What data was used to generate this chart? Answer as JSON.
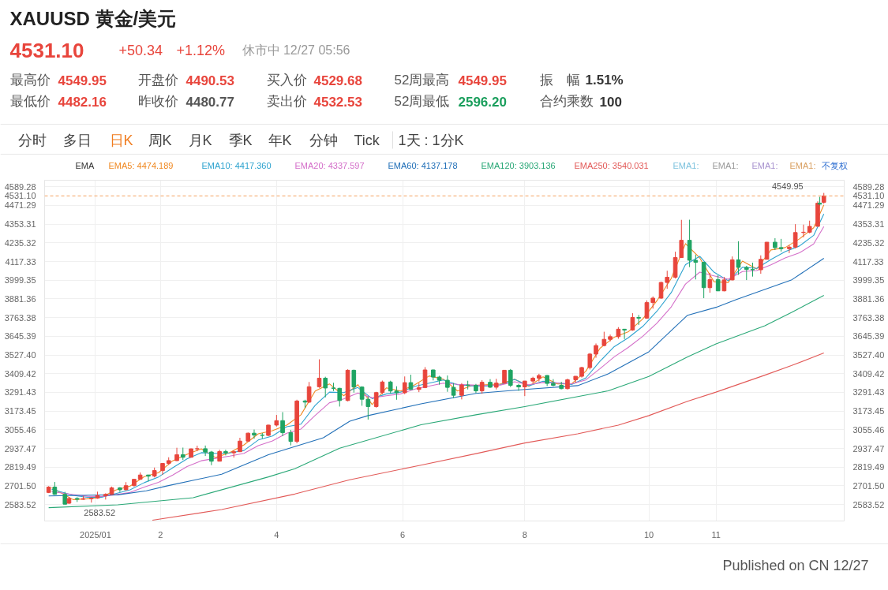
{
  "chart_data": [
    {
      "type": "other",
      "title": "XAUUSD 黄金/美元",
      "annotations": [
        "4531.10",
        "+50.34",
        "+1.12%",
        "休市中 12/27 05:56",
        "最高价",
        "4549.95",
        "开盘价",
        "4490.53",
        "买入价",
        "4529.68",
        "52周最高",
        "4549.95",
        "振　幅",
        "1.51%",
        "最低价",
        "4482.16",
        "昨收价",
        "4480.77",
        "卖出价",
        "4532.53",
        "52周最低",
        "2596.20",
        "合约乘数",
        "100",
        "分时",
        "多日",
        "日K",
        "周K",
        "月K",
        "季K",
        "年K",
        "分钟",
        "Tick",
        "1天 : 1分K"
      ]
    },
    {
      "type": "candlestick",
      "x": [
        "2024-12-10",
        "2024-12-13",
        "2024-12-18",
        "2024-12-20",
        "2024-12-24",
        "2024-12-27",
        "2024-12-31",
        "2025-01-03",
        "2025-01-07",
        "2025-01-10",
        "2025-01-14",
        "2025-01-17",
        "2025-01-21",
        "2025-01-24",
        "2025-01-28",
        "2025-01-31",
        "2025-02-04",
        "2025-02-07",
        "2025-02-11",
        "2025-02-14",
        "2025-02-18",
        "2025-02-21",
        "2025-02-25",
        "2025-02-28",
        "2025-03-04",
        "2025-03-07",
        "2025-03-11",
        "2025-03-14",
        "2025-03-18",
        "2025-03-21",
        "2025-03-25",
        "2025-03-28",
        "2025-04-01",
        "2025-04-04",
        "2025-04-08",
        "2025-04-11",
        "2025-04-15",
        "2025-04-17",
        "2025-04-22",
        "2025-04-25",
        "2025-04-29",
        "2025-05-02",
        "2025-05-06",
        "2025-05-09",
        "2025-05-13",
        "2025-05-16",
        "2025-05-20",
        "2025-05-23",
        "2025-05-27",
        "2025-05-30",
        "2025-06-03",
        "2025-06-06",
        "2025-06-10",
        "2025-06-13",
        "2025-06-17",
        "2025-06-20",
        "2025-06-24",
        "2025-06-27",
        "2025-07-01",
        "2025-07-04",
        "2025-07-08",
        "2025-07-11",
        "2025-07-15",
        "2025-07-18",
        "2025-07-22",
        "2025-07-25",
        "2025-07-29",
        "2025-08-01",
        "2025-08-05",
        "2025-08-08",
        "2025-08-12",
        "2025-08-15",
        "2025-08-19",
        "2025-08-22",
        "2025-08-26",
        "2025-08-29",
        "2025-09-02",
        "2025-09-05",
        "2025-09-09",
        "2025-09-12",
        "2025-09-16",
        "2025-09-19",
        "2025-09-23",
        "2025-09-26",
        "2025-09-30",
        "2025-10-03",
        "2025-10-07",
        "2025-10-10",
        "2025-10-14",
        "2025-10-17",
        "2025-10-21",
        "2025-10-24",
        "2025-10-28",
        "2025-10-31",
        "2025-11-04",
        "2025-11-07",
        "2025-11-11",
        "2025-11-14",
        "2025-11-18",
        "2025-11-21",
        "2025-11-25",
        "2025-11-28",
        "2025-12-02",
        "2025-12-05",
        "2025-12-09",
        "2025-12-12",
        "2025-12-16",
        "2025-12-19",
        "2025-12-23",
        "2025-12-24",
        "2025-12-26"
      ],
      "ohlc": [
        [
          2660,
          2700,
          2656,
          2694
        ],
        [
          2694,
          2726,
          2645,
          2648
        ],
        [
          2648,
          2664,
          2583.52,
          2586
        ],
        [
          2592,
          2632,
          2588,
          2622
        ],
        [
          2622,
          2630,
          2600,
          2617
        ],
        [
          2617,
          2638,
          2614,
          2621
        ],
        [
          2621,
          2630,
          2596,
          2624
        ],
        [
          2624,
          2665,
          2620,
          2640
        ],
        [
          2640,
          2655,
          2615,
          2648
        ],
        [
          2648,
          2697,
          2645,
          2689
        ],
        [
          2689,
          2694,
          2663,
          2677
        ],
        [
          2677,
          2725,
          2674,
          2703
        ],
        [
          2703,
          2746,
          2697,
          2743
        ],
        [
          2743,
          2786,
          2741,
          2770
        ],
        [
          2770,
          2772,
          2730,
          2763
        ],
        [
          2763,
          2817,
          2755,
          2798
        ],
        [
          2798,
          2845,
          2772,
          2843
        ],
        [
          2843,
          2882,
          2834,
          2861
        ],
        [
          2861,
          2942,
          2858,
          2898
        ],
        [
          2898,
          2943,
          2865,
          2882
        ],
        [
          2882,
          2937,
          2880,
          2935
        ],
        [
          2935,
          2955,
          2920,
          2936
        ],
        [
          2936,
          2956,
          2890,
          2915
        ],
        [
          2915,
          2922,
          2832,
          2857
        ],
        [
          2857,
          2930,
          2856,
          2918
        ],
        [
          2918,
          2930,
          2894,
          2910
        ],
        [
          2910,
          2925,
          2880,
          2917
        ],
        [
          2917,
          3005,
          2915,
          2984
        ],
        [
          2984,
          3038,
          2982,
          3034
        ],
        [
          3034,
          3057,
          2999,
          3022
        ],
        [
          3022,
          3035,
          3000,
          3020
        ],
        [
          3020,
          3087,
          3015,
          3085
        ],
        [
          3085,
          3149,
          3076,
          3113
        ],
        [
          3113,
          3167,
          3015,
          3037
        ],
        [
          3037,
          3055,
          2957,
          2982
        ],
        [
          2982,
          3245,
          2970,
          3237
        ],
        [
          3237,
          3245,
          3193,
          3230
        ],
        [
          3230,
          3357,
          3225,
          3327
        ],
        [
          3327,
          3500,
          3320,
          3381
        ],
        [
          3381,
          3390,
          3260,
          3319
        ],
        [
          3319,
          3352,
          3300,
          3317
        ],
        [
          3317,
          3320,
          3202,
          3240
        ],
        [
          3240,
          3437,
          3235,
          3431
        ],
        [
          3431,
          3435,
          3290,
          3325
        ],
        [
          3325,
          3330,
          3207,
          3248
        ],
        [
          3248,
          3265,
          3120,
          3202
        ],
        [
          3202,
          3295,
          3195,
          3290
        ],
        [
          3290,
          3366,
          3280,
          3357
        ],
        [
          3357,
          3365,
          3285,
          3300
        ],
        [
          3300,
          3330,
          3245,
          3289
        ],
        [
          3289,
          3392,
          3280,
          3353
        ],
        [
          3353,
          3403,
          3306,
          3310
        ],
        [
          3310,
          3350,
          3293,
          3322
        ],
        [
          3322,
          3451,
          3318,
          3433
        ],
        [
          3433,
          3435,
          3367,
          3388
        ],
        [
          3388,
          3396,
          3340,
          3368
        ],
        [
          3368,
          3398,
          3295,
          3323
        ],
        [
          3323,
          3350,
          3255,
          3273
        ],
        [
          3273,
          3350,
          3247,
          3338
        ],
        [
          3338,
          3365,
          3310,
          3336
        ],
        [
          3336,
          3345,
          3287,
          3301
        ],
        [
          3301,
          3368,
          3283,
          3355
        ],
        [
          3355,
          3375,
          3320,
          3324
        ],
        [
          3324,
          3377,
          3310,
          3350
        ],
        [
          3350,
          3433,
          3345,
          3431
        ],
        [
          3431,
          3439,
          3325,
          3336
        ],
        [
          3336,
          3345,
          3301,
          3326
        ],
        [
          3326,
          3363,
          3268,
          3363
        ],
        [
          3363,
          3390,
          3350,
          3381
        ],
        [
          3381,
          3409,
          3360,
          3398
        ],
        [
          3398,
          3400,
          3331,
          3348
        ],
        [
          3348,
          3375,
          3330,
          3336
        ],
        [
          3336,
          3358,
          3311,
          3315
        ],
        [
          3315,
          3378,
          3310,
          3371
        ],
        [
          3371,
          3394,
          3351,
          3393
        ],
        [
          3393,
          3453,
          3385,
          3448
        ],
        [
          3448,
          3540,
          3436,
          3533
        ],
        [
          3533,
          3600,
          3510,
          3587
        ],
        [
          3587,
          3674,
          3582,
          3626
        ],
        [
          3626,
          3656,
          3613,
          3643
        ],
        [
          3643,
          3703,
          3630,
          3690
        ],
        [
          3690,
          3692,
          3628,
          3685
        ],
        [
          3685,
          3791,
          3680,
          3764
        ],
        [
          3764,
          3780,
          3717,
          3760
        ],
        [
          3760,
          3872,
          3756,
          3858
        ],
        [
          3858,
          3897,
          3820,
          3886
        ],
        [
          3886,
          3990,
          3882,
          3985
        ],
        [
          3985,
          4059,
          3945,
          4018
        ],
        [
          4018,
          4179,
          4010,
          4142
        ],
        [
          4142,
          4380,
          4140,
          4251
        ],
        [
          4251,
          4381,
          4082,
          4125
        ],
        [
          4125,
          4161,
          4004,
          4112
        ],
        [
          4112,
          4116,
          3886,
          3952
        ],
        [
          3952,
          4046,
          3920,
          4003
        ],
        [
          4003,
          4030,
          3930,
          3932
        ],
        [
          3932,
          4020,
          3929,
          4001
        ],
        [
          4001,
          4149,
          3998,
          4128
        ],
        [
          4128,
          4245,
          4033,
          4080
        ],
        [
          4080,
          4090,
          4000,
          4067
        ],
        [
          4067,
          4110,
          4022,
          4065
        ],
        [
          4065,
          4156,
          4040,
          4131
        ],
        [
          4131,
          4240,
          4130,
          4239
        ],
        [
          4239,
          4264,
          4190,
          4205
        ],
        [
          4205,
          4260,
          4180,
          4198
        ],
        [
          4198,
          4220,
          4170,
          4208
        ],
        [
          4208,
          4353,
          4200,
          4300
        ],
        [
          4300,
          4350,
          4270,
          4302
        ],
        [
          4302,
          4375,
          4295,
          4339
        ],
        [
          4339,
          4497,
          4339,
          4485
        ],
        [
          4485,
          4525,
          4468,
          4479
        ],
        [
          4490.53,
          4549.95,
          4482.16,
          4531.1
        ]
      ],
      "colors": [
        "#e8453c",
        "#1fa463",
        "#1fa463",
        "#e8453c",
        "#1fa463",
        "#e8453c",
        "#e8453c",
        "#e8453c",
        "#e8453c",
        "#e8453c",
        "#1fa463",
        "#e8453c",
        "#e8453c",
        "#e8453c",
        "#1fa463",
        "#e8453c",
        "#e8453c",
        "#e8453c",
        "#e8453c",
        "#1fa463",
        "#e8453c",
        "#e8453c",
        "#1fa463",
        "#1fa463",
        "#e8453c",
        "#1fa463",
        "#e8453c",
        "#e8453c",
        "#e8453c",
        "#1fa463",
        "#1fa463",
        "#e8453c",
        "#e8453c",
        "#1fa463",
        "#1fa463",
        "#e8453c",
        "#1fa463",
        "#e8453c",
        "#e8453c",
        "#1fa463",
        "#1fa463",
        "#1fa463",
        "#e8453c",
        "#1fa463",
        "#1fa463",
        "#1fa463",
        "#e8453c",
        "#e8453c",
        "#1fa463",
        "#1fa463",
        "#e8453c",
        "#1fa463",
        "#e8453c",
        "#e8453c",
        "#1fa463",
        "#1fa463",
        "#1fa463",
        "#1fa463",
        "#e8453c",
        "#1fa463",
        "#1fa463",
        "#e8453c",
        "#1fa463",
        "#e8453c",
        "#e8453c",
        "#1fa463",
        "#1fa463",
        "#e8453c",
        "#e8453c",
        "#e8453c",
        "#1fa463",
        "#1fa463",
        "#1fa463",
        "#e8453c",
        "#e8453c",
        "#e8453c",
        "#e8453c",
        "#e8453c",
        "#e8453c",
        "#e8453c",
        "#e8453c",
        "#1fa463",
        "#e8453c",
        "#1fa463",
        "#e8453c",
        "#e8453c",
        "#e8453c",
        "#e8453c",
        "#e8453c",
        "#e8453c",
        "#1fa463",
        "#1fa463",
        "#1fa463",
        "#e8453c",
        "#1fa463",
        "#e8453c",
        "#e8453c",
        "#1fa463",
        "#1fa463",
        "#1fa463",
        "#e8453c",
        "#e8453c",
        "#1fa463",
        "#1fa463",
        "#e8453c",
        "#e8453c",
        "#e8453c",
        "#e8453c",
        "#e8453c",
        "#1fa463",
        "#e8453c"
      ],
      "series": [
        {
          "type": "line",
          "name": "EMA5: 4474.189",
          "color": "#f08a24",
          "x": [
            "2024-12-11T12:00",
            "2024-12-22",
            "2024-12-29",
            "2025-01-05",
            "2025-01-12",
            "2025-01-19",
            "2025-01-26",
            "2025-02-02",
            "2025-02-09",
            "2025-02-16",
            "2025-02-23",
            "2025-03-02",
            "2025-03-09",
            "2025-03-16",
            "2025-03-23",
            "2025-03-30",
            "2025-04-06",
            "2025-04-13",
            "2025-04-20",
            "2025-04-27",
            "2025-05-04",
            "2025-05-11",
            "2025-05-18",
            "2025-05-25",
            "2025-06-01",
            "2025-06-08",
            "2025-06-15",
            "2025-06-22",
            "2025-06-29",
            "2025-07-06",
            "2025-07-13",
            "2025-07-20",
            "2025-07-27",
            "2025-08-03",
            "2025-08-10",
            "2025-08-17",
            "2025-08-24",
            "2025-08-31",
            "2025-09-07",
            "2025-09-14",
            "2025-09-21",
            "2025-09-28",
            "2025-10-05",
            "2025-10-12",
            "2025-10-19",
            "2025-10-26",
            "2025-11-02",
            "2025-11-09",
            "2025-11-16",
            "2025-11-23",
            "2025-11-30",
            "2025-12-07",
            "2025-12-14",
            "2025-12-21",
            "2025-12-26"
          ],
          "values": [
            2690,
            2615,
            2620,
            2630,
            2675,
            2700,
            2760,
            2785,
            2860,
            2900,
            2935,
            2880,
            2912,
            2960,
            3030,
            3050,
            3085,
            3150,
            3300,
            3345,
            3270,
            3340,
            3215,
            3320,
            3300,
            3340,
            3395,
            3375,
            3300,
            3335,
            3340,
            3345,
            3375,
            3330,
            3390,
            3345,
            3345,
            3425,
            3570,
            3640,
            3675,
            3755,
            3870,
            4010,
            4230,
            4140,
            3990,
            3985,
            4120,
            4070,
            4190,
            4205,
            4260,
            4330,
            4474.189
          ]
        },
        {
          "type": "line",
          "name": "EMA10: 4417.360",
          "color": "#2ea3cf",
          "x": [
            "2024-12-11T12:00",
            "2024-12-22",
            "2024-12-29",
            "2025-01-05",
            "2025-01-12",
            "2025-01-19",
            "2025-01-26",
            "2025-02-02",
            "2025-02-09",
            "2025-02-16",
            "2025-02-23",
            "2025-03-02",
            "2025-03-09",
            "2025-03-16",
            "2025-03-23",
            "2025-03-30",
            "2025-04-06",
            "2025-04-13",
            "2025-04-20",
            "2025-04-27",
            "2025-05-04",
            "2025-05-11",
            "2025-05-18",
            "2025-05-25",
            "2025-06-01",
            "2025-06-08",
            "2025-06-15",
            "2025-06-22",
            "2025-06-29",
            "2025-07-06",
            "2025-07-13",
            "2025-07-20",
            "2025-07-27",
            "2025-08-03",
            "2025-08-10",
            "2025-08-17",
            "2025-08-24",
            "2025-08-31",
            "2025-09-07",
            "2025-09-14",
            "2025-09-21",
            "2025-09-28",
            "2025-10-05",
            "2025-10-12",
            "2025-10-19",
            "2025-10-26",
            "2025-11-02",
            "2025-11-09",
            "2025-11-16",
            "2025-11-23",
            "2025-11-30",
            "2025-12-07",
            "2025-12-14",
            "2025-12-21",
            "2025-12-26"
          ],
          "values": [
            2680,
            2642,
            2629,
            2630,
            2653,
            2677,
            2722,
            2758,
            2816,
            2872,
            2911,
            2907,
            2909,
            2925,
            2991,
            3016,
            3075,
            3091,
            3210,
            3293,
            3290,
            3322,
            3252,
            3282,
            3293,
            3330,
            3350,
            3370,
            3340,
            3333,
            3331,
            3340,
            3373,
            3333,
            3362,
            3351,
            3341,
            3382,
            3488,
            3580,
            3637,
            3708,
            3804,
            3921,
            4097,
            4150,
            4050,
            3996,
            4081,
            4074,
            4130,
            4180,
            4215,
            4282,
            4417.36
          ]
        },
        {
          "type": "line",
          "name": "EMA20: 4337.597",
          "color": "#d46fc9",
          "x": [
            "2024-12-11T12:00",
            "2024-12-22",
            "2024-12-29",
            "2025-01-05",
            "2025-01-12",
            "2025-01-19",
            "2025-01-26",
            "2025-02-02",
            "2025-02-09",
            "2025-02-16",
            "2025-02-23",
            "2025-03-02",
            "2025-03-09",
            "2025-03-16",
            "2025-03-23",
            "2025-03-30",
            "2025-04-06",
            "2025-04-13",
            "2025-04-20",
            "2025-04-27",
            "2025-05-04",
            "2025-05-11",
            "2025-05-18",
            "2025-05-25",
            "2025-06-01",
            "2025-06-08",
            "2025-06-15",
            "2025-06-22",
            "2025-06-29",
            "2025-07-06",
            "2025-07-13",
            "2025-07-20",
            "2025-07-27",
            "2025-08-03",
            "2025-08-10",
            "2025-08-17",
            "2025-08-24",
            "2025-08-31",
            "2025-09-07",
            "2025-09-14",
            "2025-09-21",
            "2025-09-28",
            "2025-10-05",
            "2025-10-12",
            "2025-10-19",
            "2025-10-26",
            "2025-11-02",
            "2025-11-09",
            "2025-11-16",
            "2025-11-23",
            "2025-11-30",
            "2025-12-07",
            "2025-12-14",
            "2025-12-21",
            "2025-12-26"
          ],
          "values": [
            2665,
            2647,
            2636,
            2634,
            2646,
            2660,
            2694,
            2724,
            2770,
            2823,
            2860,
            2875,
            2889,
            2907,
            2955,
            2985,
            3034,
            3060,
            3146,
            3226,
            3250,
            3288,
            3257,
            3270,
            3282,
            3312,
            3331,
            3350,
            3342,
            3338,
            3335,
            3338,
            3358,
            3340,
            3354,
            3351,
            3345,
            3370,
            3441,
            3516,
            3576,
            3645,
            3729,
            3831,
            3975,
            4050,
            4027,
            4005,
            4054,
            4060,
            4096,
            4140,
            4172,
            4228,
            4337.597
          ]
        },
        {
          "type": "line",
          "name": "EMA60: 4137.178",
          "color": "#2270b8",
          "x": [
            "2024-12-10",
            "2024-12-31",
            "2025-01-13",
            "2025-01-27",
            "2025-02-06",
            "2025-03-05",
            "2025-03-28",
            "2025-04-24",
            "2025-05-07",
            "2025-05-16",
            "2025-06-11",
            "2025-07-08",
            "2025-08-01",
            "2025-08-27",
            "2025-09-11",
            "2025-10-01",
            "2025-10-20",
            "2025-11-03",
            "2025-11-13",
            "2025-12-10",
            "2025-12-26"
          ],
          "values": [
            2638,
            2643,
            2645,
            2670,
            2701,
            2775,
            2898,
            3005,
            3110,
            3145,
            3219,
            3285,
            3310,
            3334,
            3408,
            3548,
            3778,
            3828,
            3877,
            4000,
            4137.178
          ]
        },
        {
          "type": "line",
          "name": "EMA120: 3903.136",
          "color": "#2aa877",
          "x": [
            "2024-12-10",
            "2025-01-13",
            "2025-02-19",
            "2025-03-28",
            "2025-04-10",
            "2025-05-02",
            "2025-06-11",
            "2025-07-08",
            "2025-08-01",
            "2025-09-11",
            "2025-10-01",
            "2025-10-20",
            "2025-11-03",
            "2025-11-27",
            "2025-12-10",
            "2025-12-26"
          ],
          "values": [
            2564,
            2582,
            2627,
            2758,
            2810,
            2939,
            3087,
            3150,
            3202,
            3301,
            3392,
            3515,
            3597,
            3712,
            3795,
            3903.136
          ]
        },
        {
          "type": "line",
          "name": "EMA250: 3540.031",
          "color": "#e25a58",
          "x": [
            "2025-01-30",
            "2025-03-05",
            "2025-04-10",
            "2025-05-07",
            "2025-06-10",
            "2025-07-08",
            "2025-08-01",
            "2025-08-27",
            "2025-09-16",
            "2025-10-01",
            "2025-10-20",
            "2025-11-03",
            "2025-11-27",
            "2025-12-10",
            "2025-12-26"
          ],
          "values": [
            2485,
            2552,
            2650,
            2740,
            2830,
            2905,
            2972,
            3030,
            3085,
            3145,
            3235,
            3293,
            3400,
            3460,
            3540.031
          ]
        }
      ],
      "xlim": [
        "2024-12-08",
        "2026-01-05"
      ],
      "xticks": [
        {
          "value": "2025-01-02",
          "label": "2025/01"
        },
        {
          "value": "2025-02-03",
          "label": "2"
        },
        {
          "value": "2025-04-01",
          "label": "4"
        },
        {
          "value": "2025-06-02",
          "label": "6"
        },
        {
          "value": "2025-08-01",
          "label": "8"
        },
        {
          "value": "2025-10-01",
          "label": "10"
        },
        {
          "value": "2025-11-03",
          "label": "11"
        }
      ],
      "ylim": [
        2480,
        4630
      ],
      "yticks": [
        2583.52,
        {
          "value": 2701.5,
          "label": "2701.50"
        },
        2819.49,
        2937.47,
        3055.46,
        3173.45,
        3291.43,
        3409.42,
        {
          "value": 3527.4,
          "label": "3527.40"
        },
        3645.39,
        3763.38,
        3881.36,
        3999.35,
        4117.33,
        4235.32,
        4353.31,
        4471.29,
        4589.28
      ],
      "y2lim": [
        2480,
        4630
      ],
      "y2ticks": [
        2583.52,
        {
          "value": 2701.5,
          "label": "2701.50"
        },
        2819.49,
        2937.47,
        3055.46,
        3173.45,
        3291.43,
        3409.42,
        {
          "value": 3527.4,
          "label": "3527.40"
        },
        3645.39,
        3763.38,
        3881.36,
        3999.35,
        4117.33,
        4235.32,
        4353.31,
        4471.29,
        4589.28
      ],
      "ref_lines": [
        {
          "axis": "y",
          "value": 4531.1,
          "label": "4531.10",
          "color": "#f4a261",
          "line_style": "dashed"
        }
      ],
      "annotations": [
        {
          "text": "4549.95",
          "x": "2025-12-26",
          "y": 4549.95
        },
        {
          "text": "2583.52",
          "x": "2024-12-18",
          "y": 2583.52
        },
        "EMA1:",
        "EMA1:",
        "EMA1:",
        "EMA1:",
        "不复权",
        "Published on CN 12/27"
      ],
      "legend_title": "EMA",
      "legend": "top",
      "grid": true
    }
  ]
}
